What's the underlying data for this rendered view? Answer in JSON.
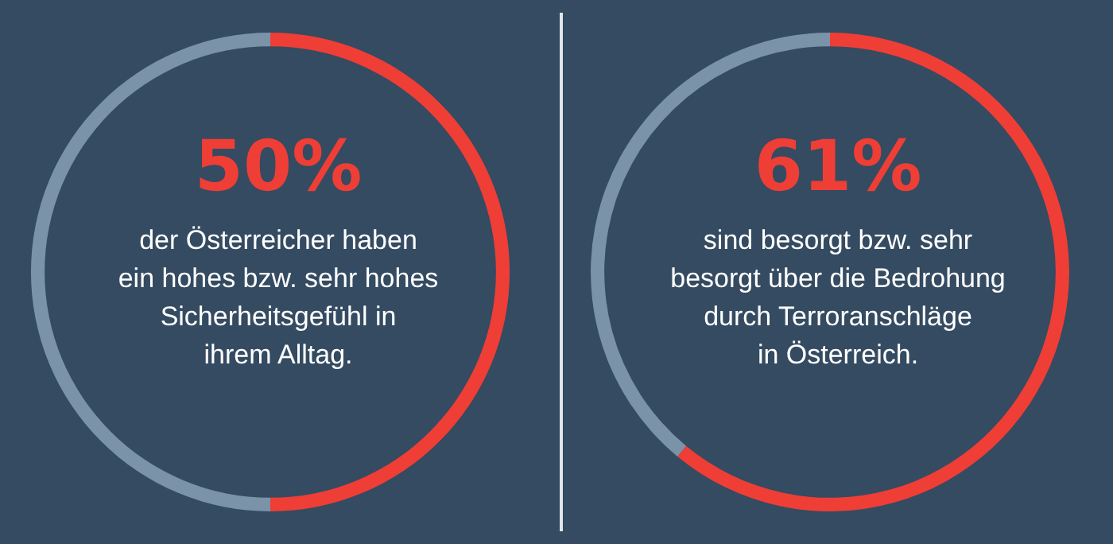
{
  "chart_data": [
    {
      "type": "donut",
      "title": "50%",
      "subtitle": "der Österreicher haben\nein hohes bzw. sehr hohes\nSicherheitsgefühl in\nihrem Alltag.",
      "categories": [
        null,
        null
      ],
      "values": [
        50,
        50
      ],
      "colors": [
        "#ef3e36",
        "#7b93a8"
      ]
    },
    {
      "type": "donut",
      "title": "61%",
      "subtitle": "sind besorgt bzw. sehr\nbesorgt über die Bedrohung\ndurch Terroranschläge\nin Österreich.",
      "categories": [
        null,
        null
      ],
      "values": [
        61,
        39
      ],
      "colors": [
        "#ef3e36",
        "#7b93a8"
      ]
    }
  ]
}
